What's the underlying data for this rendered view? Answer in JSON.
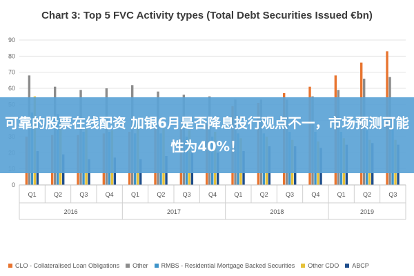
{
  "title": "Chart 3: Top 5 FVC Activity types (Total Debt Securities Issued €bn)",
  "overlay_text": "可靠的股票在线配资 加银6月是否降息投行观点不一，市场预测可能性为40%！",
  "chart_data": {
    "type": "bar",
    "title": "Chart 3: Top 5 FVC Activity types (Total Debt Securities Issued €bn)",
    "ylim": [
      0,
      90
    ],
    "yticks": [
      0,
      10,
      20,
      30,
      40,
      50,
      60,
      70,
      80,
      90
    ],
    "grid": true,
    "legend_position": "bottom",
    "categories": [
      "Q1",
      "Q2",
      "Q3",
      "Q4",
      "Q1",
      "Q2",
      "Q3",
      "Q4",
      "Q1",
      "Q2",
      "Q3",
      "Q4",
      "Q1",
      "Q2",
      "Q3"
    ],
    "groups": [
      {
        "label": "2016",
        "count": 4
      },
      {
        "label": "2017",
        "count": 4
      },
      {
        "label": "2018",
        "count": 4
      },
      {
        "label": "2019",
        "count": 3
      }
    ],
    "series": [
      {
        "name": "CLO - Collateralised Loan Obligations",
        "color": "#e8742f",
        "values": [
          30,
          31,
          31,
          32,
          33,
          35,
          36,
          38,
          49,
          51,
          57,
          61,
          68,
          76,
          83
        ]
      },
      {
        "name": "Other",
        "color": "#8c8c8c",
        "values": [
          68,
          61,
          59,
          60,
          62,
          58,
          56,
          55,
          53,
          53,
          53,
          55,
          59,
          66,
          67
        ]
      },
      {
        "name": "RMBS - Residential Mortgage Backed Securities",
        "color": "#3e94c9",
        "values": [
          45,
          44,
          33,
          33,
          32,
          32,
          30,
          30,
          32,
          32,
          33,
          33,
          33,
          34,
          35
        ]
      },
      {
        "name": "Other CDO",
        "color": "#e6c239",
        "values": [
          55,
          41,
          35,
          34,
          38,
          35,
          34,
          33,
          29,
          30,
          28,
          27,
          29,
          28,
          28
        ]
      },
      {
        "name": "ABCP",
        "color": "#1f4e8c",
        "values": [
          21,
          19,
          16,
          17,
          16,
          18,
          20,
          20,
          21,
          24,
          24,
          23,
          25,
          26,
          25
        ]
      }
    ]
  }
}
